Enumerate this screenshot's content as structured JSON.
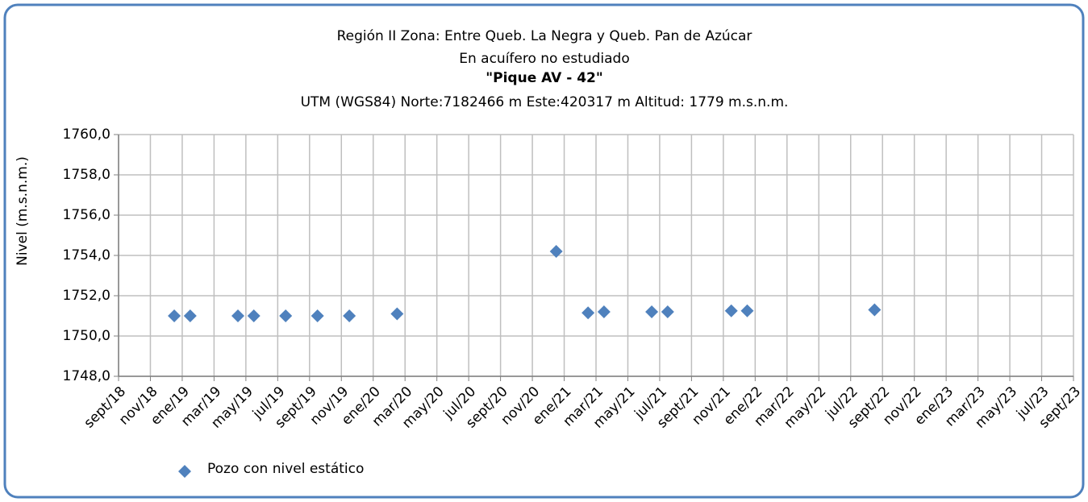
{
  "chart_data": {
    "type": "scatter",
    "title": "Región II  Zona: Entre Queb. La Negra y Queb. Pan de Azúcar",
    "subtitle": "En acuífero no estudiado",
    "well": "\"Pique AV - 42\"",
    "location": "UTM (WGS84) Norte:7182466 m   Este:420317 m Altitud: 1779 m.s.n.m.",
    "y_label": "Nivel (m.s.n.m.)",
    "x": [
      "2018-12",
      "2019-01",
      "2019-04",
      "2019-05",
      "2019-07",
      "2019-09",
      "2019-11",
      "2020-02",
      "2020-12",
      "2021-02",
      "2021-03",
      "2021-06",
      "2021-07",
      "2021-11",
      "2021-12",
      "2022-08"
    ],
    "series": [
      {
        "name": "Pozo con nivel estático",
        "color": "#4f81bd",
        "values": [
          1751.0,
          1751.0,
          1751.0,
          1751.0,
          1751.0,
          1751.0,
          1751.0,
          1751.1,
          1754.2,
          1751.15,
          1751.2,
          1751.2,
          1751.2,
          1751.25,
          1751.25,
          1751.3
        ]
      }
    ],
    "xlim": [
      "2018-09",
      "2023-09"
    ],
    "xticks": [
      {
        "value": "2018-09",
        "label": "sept/18"
      },
      {
        "value": "2018-11",
        "label": "nov/18"
      },
      {
        "value": "2019-01",
        "label": "ene/19"
      },
      {
        "value": "2019-03",
        "label": "mar/19"
      },
      {
        "value": "2019-05",
        "label": "may/19"
      },
      {
        "value": "2019-07",
        "label": "jul/19"
      },
      {
        "value": "2019-09",
        "label": "sept/19"
      },
      {
        "value": "2019-11",
        "label": "nov/19"
      },
      {
        "value": "2020-01",
        "label": "ene/20"
      },
      {
        "value": "2020-03",
        "label": "mar/20"
      },
      {
        "value": "2020-05",
        "label": "may/20"
      },
      {
        "value": "2020-07",
        "label": "jul/20"
      },
      {
        "value": "2020-09",
        "label": "sept/20"
      },
      {
        "value": "2020-11",
        "label": "nov/20"
      },
      {
        "value": "2021-01",
        "label": "ene/21"
      },
      {
        "value": "2021-03",
        "label": "mar/21"
      },
      {
        "value": "2021-05",
        "label": "may/21"
      },
      {
        "value": "2021-07",
        "label": "jul/21"
      },
      {
        "value": "2021-09",
        "label": "sept/21"
      },
      {
        "value": "2021-11",
        "label": "nov/21"
      },
      {
        "value": "2022-01",
        "label": "ene/22"
      },
      {
        "value": "2022-03",
        "label": "mar/22"
      },
      {
        "value": "2022-05",
        "label": "may/22"
      },
      {
        "value": "2022-07",
        "label": "jul/22"
      },
      {
        "value": "2022-09",
        "label": "sept/22"
      },
      {
        "value": "2022-11",
        "label": "nov/22"
      },
      {
        "value": "2023-01",
        "label": "ene/23"
      },
      {
        "value": "2023-03",
        "label": "mar/23"
      },
      {
        "value": "2023-05",
        "label": "may/23"
      },
      {
        "value": "2023-07",
        "label": "jul/23"
      },
      {
        "value": "2023-09",
        "label": "sept/23"
      }
    ],
    "ylim": [
      1748,
      1760
    ],
    "yticks": [
      {
        "value": 1748,
        "label": "1748,0"
      },
      {
        "value": 1750,
        "label": "1750,0"
      },
      {
        "value": 1752,
        "label": "1752,0"
      },
      {
        "value": 1754,
        "label": "1754,0"
      },
      {
        "value": 1756,
        "label": "1756,0"
      },
      {
        "value": 1758,
        "label": "1758,0"
      },
      {
        "value": 1760,
        "label": "1760,0"
      }
    ],
    "grid": true,
    "legend": "bottom-left"
  }
}
